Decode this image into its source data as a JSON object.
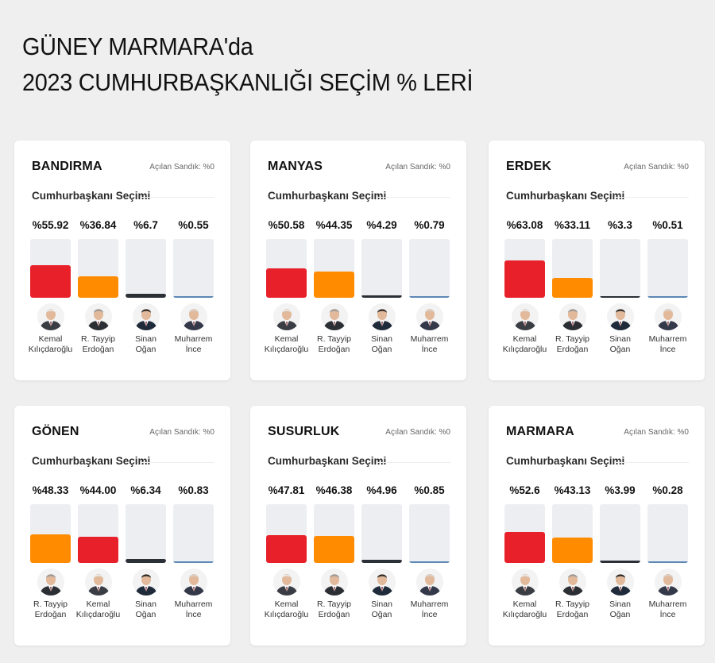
{
  "page": {
    "title_line1": "GÜNEY MARMARA'da",
    "title_line2": "2023 CUMHURBAŞKANLIĞI SEÇİM % LERİ"
  },
  "colors": {
    "red": "#e8202a",
    "orange": "#ff8c00",
    "dark": "#2b2f36",
    "blue": "#5b87b5",
    "bar_bg": "#eceef2"
  },
  "candidates": {
    "kk": {
      "first": "Kemal",
      "last": "Kılıçdaroğlu",
      "color": "#e8202a",
      "suit": "#3a3d44",
      "hair": "#e8e8e8"
    },
    "rte": {
      "first": "R. Tayyip",
      "last": "Erdoğan",
      "color": "#ff8c00",
      "suit": "#2b2e33",
      "hair": "#9a9a9a"
    },
    "so": {
      "first": "Sinan",
      "last": "Oğan",
      "color": "#2b2f36",
      "suit": "#1f2a3a",
      "hair": "#2a2a2a"
    },
    "mi": {
      "first": "Muharrem",
      "last": "İnce",
      "color": "#5b87b5",
      "suit": "#34394a",
      "hair": "#d9cfc7"
    }
  },
  "chart_data": [
    {
      "type": "bar",
      "title": "BANDIRMA",
      "subtitle": "Açılan Sandık: %0",
      "section": "Cumhurbaşkanı Seçimi",
      "ylim": [
        0,
        100
      ],
      "entries": [
        {
          "candidate": "kk",
          "label": "%55.92",
          "value": 55.92
        },
        {
          "candidate": "rte",
          "label": "%36.84",
          "value": 36.84
        },
        {
          "candidate": "so",
          "label": "%6.7",
          "value": 6.7
        },
        {
          "candidate": "mi",
          "label": "%0.55",
          "value": 0.55
        }
      ]
    },
    {
      "type": "bar",
      "title": "MANYAS",
      "subtitle": "Açılan Sandık: %0",
      "section": "Cumhurbaşkanı Seçimi",
      "ylim": [
        0,
        100
      ],
      "entries": [
        {
          "candidate": "kk",
          "label": "%50.58",
          "value": 50.58
        },
        {
          "candidate": "rte",
          "label": "%44.35",
          "value": 44.35
        },
        {
          "candidate": "so",
          "label": "%4.29",
          "value": 4.29
        },
        {
          "candidate": "mi",
          "label": "%0.79",
          "value": 0.79
        }
      ]
    },
    {
      "type": "bar",
      "title": "ERDEK",
      "subtitle": "Açılan Sandık: %0",
      "section": "Cumhurbaşkanı Seçimi",
      "ylim": [
        0,
        100
      ],
      "entries": [
        {
          "candidate": "kk",
          "label": "%63.08",
          "value": 63.08
        },
        {
          "candidate": "rte",
          "label": "%33.11",
          "value": 33.11
        },
        {
          "candidate": "so",
          "label": "%3.3",
          "value": 3.3
        },
        {
          "candidate": "mi",
          "label": "%0.51",
          "value": 0.51
        }
      ]
    },
    {
      "type": "bar",
      "title": "GÖNEN",
      "subtitle": "Açılan Sandık: %0",
      "section": "Cumhurbaşkanı Seçimi",
      "ylim": [
        0,
        100
      ],
      "entries": [
        {
          "candidate": "rte",
          "label": "%48.33",
          "value": 48.33
        },
        {
          "candidate": "kk",
          "label": "%44.00",
          "value": 44.0
        },
        {
          "candidate": "so",
          "label": "%6.34",
          "value": 6.34
        },
        {
          "candidate": "mi",
          "label": "%0.83",
          "value": 0.83
        }
      ]
    },
    {
      "type": "bar",
      "title": "SUSURLUK",
      "subtitle": "Açılan Sandık: %0",
      "section": "Cumhurbaşkanı Seçimi",
      "ylim": [
        0,
        100
      ],
      "entries": [
        {
          "candidate": "kk",
          "label": "%47.81",
          "value": 47.81
        },
        {
          "candidate": "rte",
          "label": "%46.38",
          "value": 46.38
        },
        {
          "candidate": "so",
          "label": "%4.96",
          "value": 4.96
        },
        {
          "candidate": "mi",
          "label": "%0.85",
          "value": 0.85
        }
      ]
    },
    {
      "type": "bar",
      "title": "MARMARA",
      "subtitle": "Açılan Sandık: %0",
      "section": "Cumhurbaşkanı Seçimi",
      "ylim": [
        0,
        100
      ],
      "entries": [
        {
          "candidate": "kk",
          "label": "%52.6",
          "value": 52.6
        },
        {
          "candidate": "rte",
          "label": "%43.13",
          "value": 43.13
        },
        {
          "candidate": "so",
          "label": "%3.99",
          "value": 3.99
        },
        {
          "candidate": "mi",
          "label": "%0.28",
          "value": 0.28
        }
      ]
    }
  ]
}
